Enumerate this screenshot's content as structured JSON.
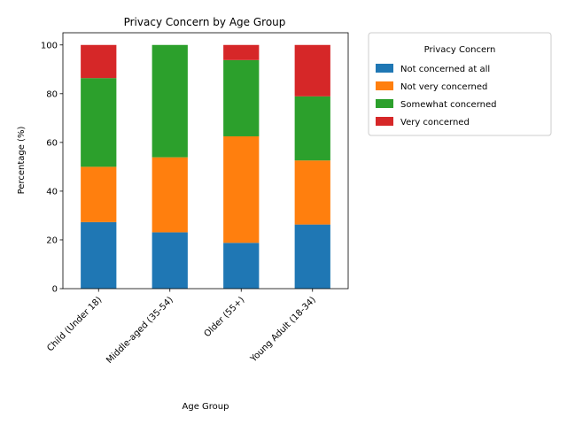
{
  "chart_data": {
    "type": "bar",
    "stacked": true,
    "title": "Privacy Concern by Age Group",
    "xlabel": "Age Group",
    "ylabel": "Percentage (%)",
    "ylim": [
      0,
      105
    ],
    "yticks": [
      0,
      20,
      40,
      60,
      80,
      100
    ],
    "categories": [
      "Child (Under 18)",
      "Middle-aged (35-54)",
      "Older (55+)",
      "Young Adult (18-34)"
    ],
    "series": [
      {
        "name": "Not concerned at all",
        "color": "#1f77b4",
        "values": [
          27.3,
          23.1,
          18.8,
          26.3
        ]
      },
      {
        "name": "Not very concerned",
        "color": "#ff7f0e",
        "values": [
          22.7,
          30.8,
          43.7,
          26.3
        ]
      },
      {
        "name": "Somewhat concerned",
        "color": "#2ca02c",
        "values": [
          36.4,
          46.1,
          31.3,
          26.3
        ]
      },
      {
        "name": "Very concerned",
        "color": "#d62728",
        "values": [
          13.6,
          0.0,
          6.2,
          21.1
        ]
      }
    ],
    "legend": {
      "title": "Privacy Concern",
      "placement": "outside-top-right"
    },
    "grid": false
  }
}
